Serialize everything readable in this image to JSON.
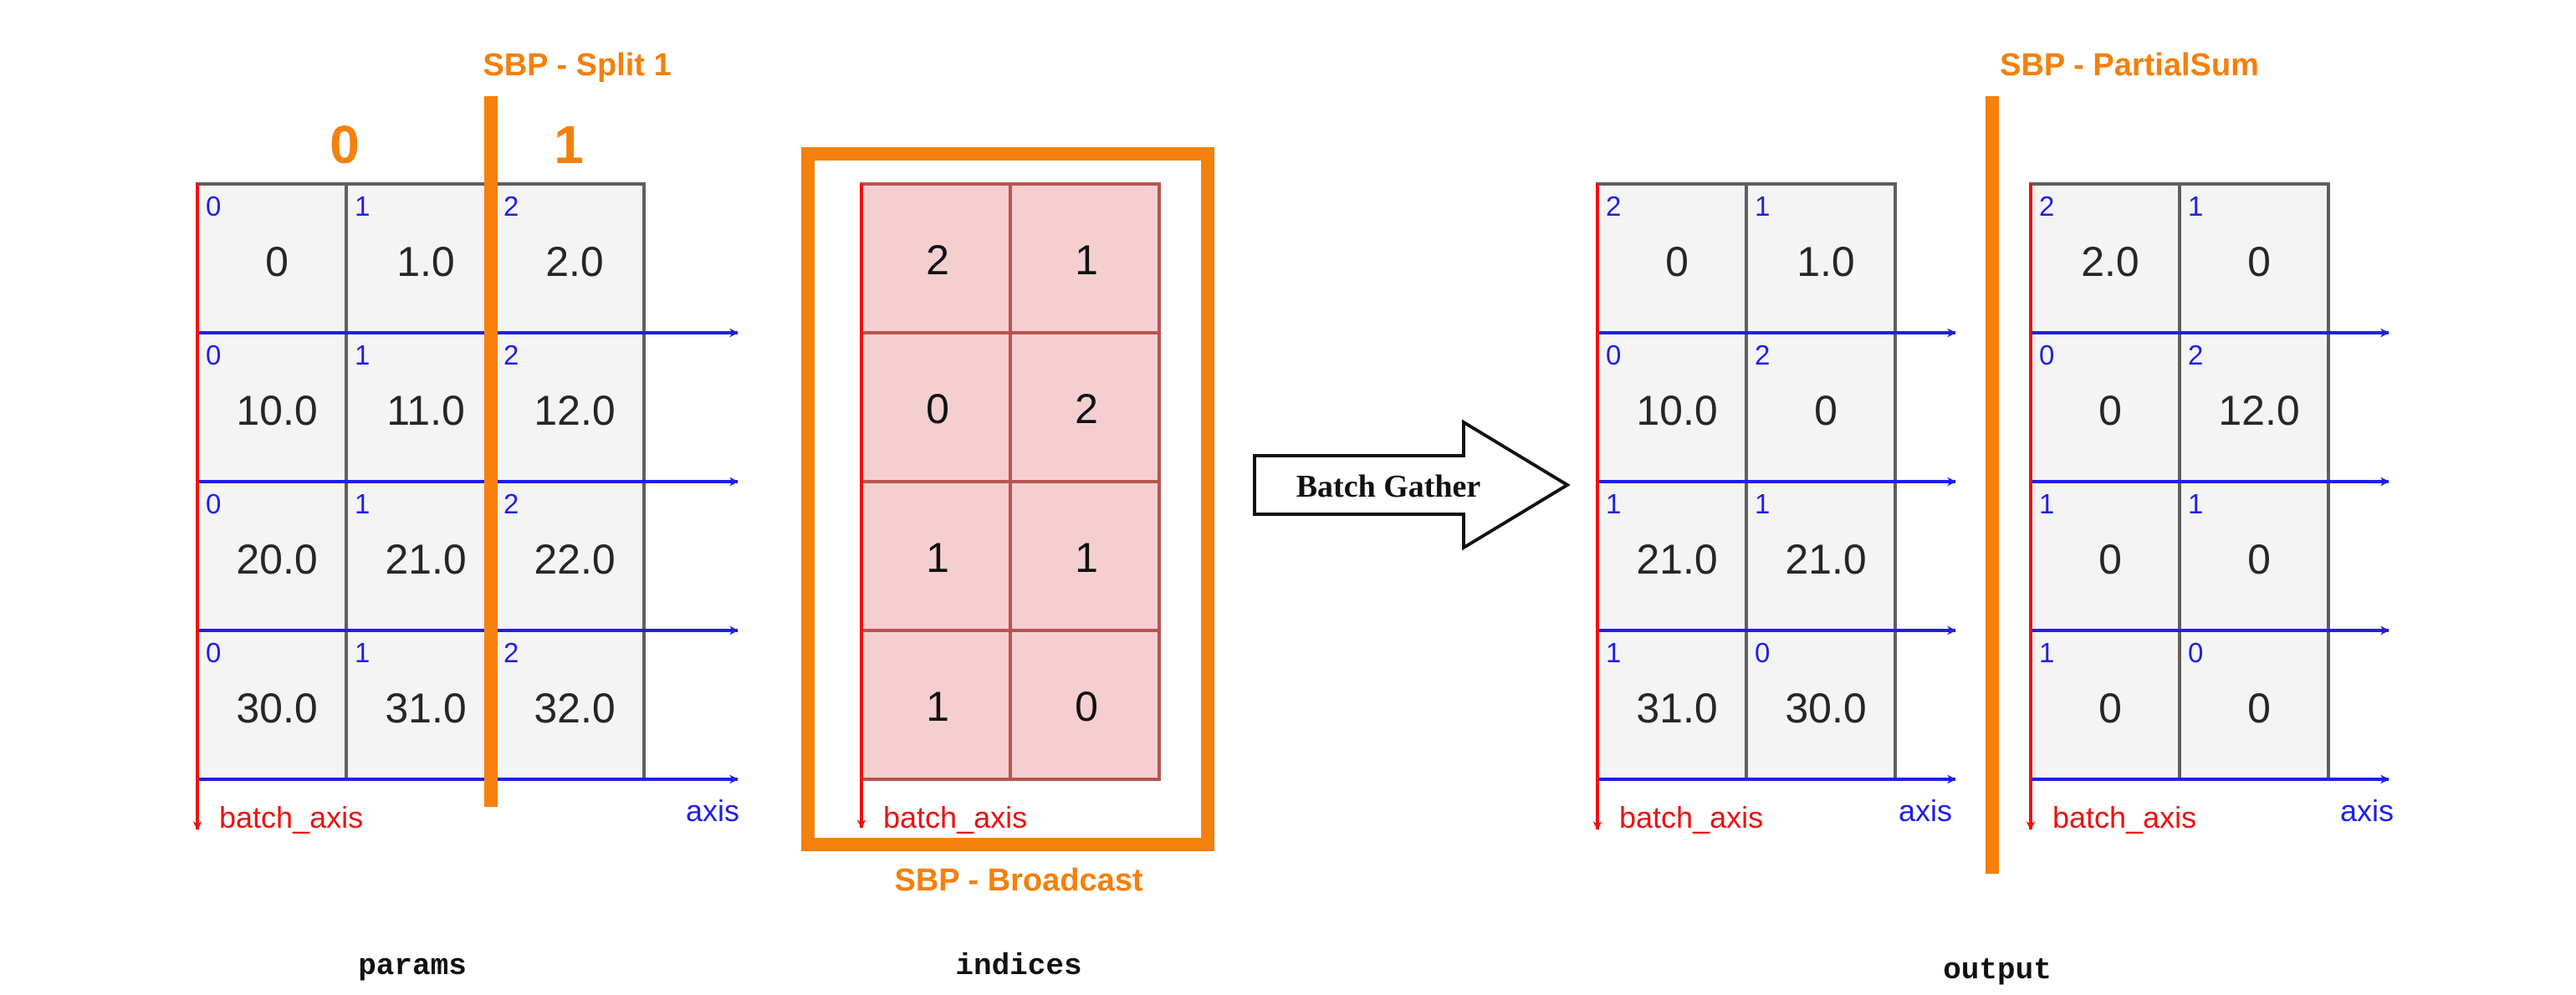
{
  "colors": {
    "cell_fill": "#f4f4f4",
    "cell_stroke": "#5f5f5f",
    "indices_fill": "#f5cfcf",
    "indices_stroke": "#b85450",
    "sbp_orange": "#f5800c",
    "batch_axis_red": "#ee1111",
    "axis_blue": "#1f1fe8"
  },
  "params": {
    "caption": "params",
    "sbp_label": "SBP - Split 1",
    "partitions": [
      "0",
      "1"
    ],
    "batch_axis_label": "batch_axis",
    "axis_label": "axis",
    "rows": [
      [
        {
          "idx": "0",
          "val": "0"
        },
        {
          "idx": "1",
          "val": "1.0"
        },
        {
          "idx": "2",
          "val": "2.0"
        }
      ],
      [
        {
          "idx": "0",
          "val": "10.0"
        },
        {
          "idx": "1",
          "val": "11.0"
        },
        {
          "idx": "2",
          "val": "12.0"
        }
      ],
      [
        {
          "idx": "0",
          "val": "20.0"
        },
        {
          "idx": "1",
          "val": "21.0"
        },
        {
          "idx": "2",
          "val": "22.0"
        }
      ],
      [
        {
          "idx": "0",
          "val": "30.0"
        },
        {
          "idx": "1",
          "val": "31.0"
        },
        {
          "idx": "2",
          "val": "32.0"
        }
      ]
    ]
  },
  "indices": {
    "caption": "indices",
    "sbp_label": "SBP - Broadcast",
    "batch_axis_label": "batch_axis",
    "rows": [
      [
        "2",
        "1"
      ],
      [
        "0",
        "2"
      ],
      [
        "1",
        "1"
      ],
      [
        "1",
        "0"
      ]
    ]
  },
  "operation": {
    "label": "Batch Gather"
  },
  "output": {
    "caption": "output",
    "sbp_label": "SBP - PartialSum",
    "batch_axis_label": "batch_axis",
    "axis_label": "axis",
    "left_rows": [
      [
        {
          "idx": "2",
          "val": "0"
        },
        {
          "idx": "1",
          "val": "1.0"
        }
      ],
      [
        {
          "idx": "0",
          "val": "10.0"
        },
        {
          "idx": "2",
          "val": "0"
        }
      ],
      [
        {
          "idx": "1",
          "val": "21.0"
        },
        {
          "idx": "1",
          "val": "21.0"
        }
      ],
      [
        {
          "idx": "1",
          "val": "31.0"
        },
        {
          "idx": "0",
          "val": "30.0"
        }
      ]
    ],
    "right_rows": [
      [
        {
          "idx": "2",
          "val": "2.0"
        },
        {
          "idx": "1",
          "val": "0"
        }
      ],
      [
        {
          "idx": "0",
          "val": "0"
        },
        {
          "idx": "2",
          "val": "12.0"
        }
      ],
      [
        {
          "idx": "1",
          "val": "0"
        },
        {
          "idx": "1",
          "val": "0"
        }
      ],
      [
        {
          "idx": "1",
          "val": "0"
        },
        {
          "idx": "0",
          "val": "0"
        }
      ]
    ]
  }
}
